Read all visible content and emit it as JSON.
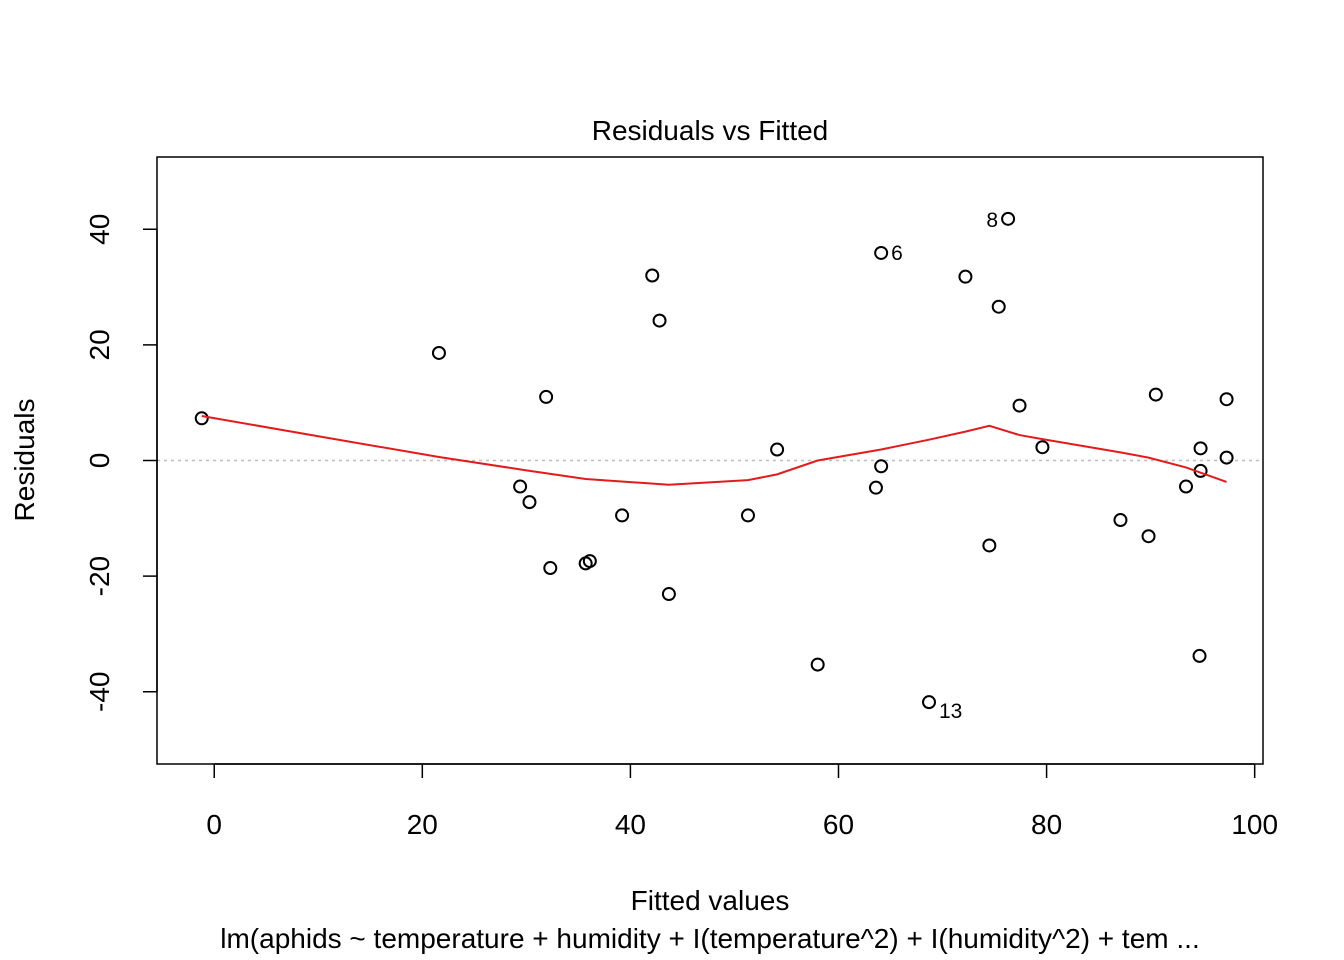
{
  "chart_data": {
    "type": "scatter",
    "title": "Residuals vs Fitted",
    "xlabel": "Fitted values",
    "ylabel": "Residuals",
    "subtitle": "lm(aphids ~ temperature + humidity + I(temperature^2) + I(humidity^2) + tem ...",
    "xlim": [
      -5.5,
      100.8
    ],
    "ylim": [
      -52.5,
      52.5
    ],
    "x_ticks": [
      0,
      20,
      40,
      60,
      80,
      100
    ],
    "y_ticks": [
      -40,
      -20,
      0,
      20,
      40
    ],
    "reference_line_y": 0,
    "colors": {
      "points": "#000000",
      "smooth": "#e41a1c",
      "reference": "#bebebe"
    },
    "points": [
      {
        "x": -1.2,
        "y": 7.3
      },
      {
        "x": 21.6,
        "y": 18.6
      },
      {
        "x": 29.4,
        "y": -4.5
      },
      {
        "x": 30.3,
        "y": -7.2
      },
      {
        "x": 31.9,
        "y": 11.0
      },
      {
        "x": 32.3,
        "y": -18.6
      },
      {
        "x": 35.7,
        "y": -17.8
      },
      {
        "x": 36.1,
        "y": -17.4
      },
      {
        "x": 39.2,
        "y": -9.5
      },
      {
        "x": 42.1,
        "y": 32.0
      },
      {
        "x": 42.8,
        "y": 24.2
      },
      {
        "x": 43.7,
        "y": -23.1
      },
      {
        "x": 51.3,
        "y": -9.5
      },
      {
        "x": 54.1,
        "y": 1.9
      },
      {
        "x": 58.0,
        "y": -35.3
      },
      {
        "x": 63.6,
        "y": -4.7
      },
      {
        "x": 64.1,
        "y": -1.0
      },
      {
        "x": 64.1,
        "y": 35.9,
        "label": "6"
      },
      {
        "x": 68.7,
        "y": -41.8,
        "label": "13"
      },
      {
        "x": 72.2,
        "y": 31.8
      },
      {
        "x": 74.5,
        "y": -14.7
      },
      {
        "x": 75.4,
        "y": 26.6
      },
      {
        "x": 76.3,
        "y": 41.8,
        "label": "8"
      },
      {
        "x": 77.4,
        "y": 9.5
      },
      {
        "x": 79.6,
        "y": 2.3
      },
      {
        "x": 87.1,
        "y": -10.3
      },
      {
        "x": 89.8,
        "y": -13.1
      },
      {
        "x": 90.5,
        "y": 11.4
      },
      {
        "x": 93.4,
        "y": -4.5
      },
      {
        "x": 94.7,
        "y": -33.8
      },
      {
        "x": 94.8,
        "y": 2.1
      },
      {
        "x": 94.8,
        "y": -1.8
      },
      {
        "x": 97.3,
        "y": 10.6
      },
      {
        "x": 97.3,
        "y": 0.5
      }
    ],
    "smooth_line": [
      {
        "x": -1.2,
        "y": 7.7
      },
      {
        "x": 10.0,
        "y": 4.2
      },
      {
        "x": 21.6,
        "y": 0.6
      },
      {
        "x": 30.0,
        "y": -1.7
      },
      {
        "x": 35.7,
        "y": -3.2
      },
      {
        "x": 43.7,
        "y": -4.2
      },
      {
        "x": 51.3,
        "y": -3.4
      },
      {
        "x": 54.1,
        "y": -2.4
      },
      {
        "x": 58.0,
        "y": 0.0
      },
      {
        "x": 64.1,
        "y": 1.9
      },
      {
        "x": 68.7,
        "y": 3.6
      },
      {
        "x": 72.2,
        "y": 5.0
      },
      {
        "x": 74.5,
        "y": 6.0
      },
      {
        "x": 77.4,
        "y": 4.4
      },
      {
        "x": 79.6,
        "y": 3.7
      },
      {
        "x": 87.1,
        "y": 1.4
      },
      {
        "x": 89.8,
        "y": 0.5
      },
      {
        "x": 93.4,
        "y": -1.2
      },
      {
        "x": 97.3,
        "y": -3.7
      }
    ]
  }
}
